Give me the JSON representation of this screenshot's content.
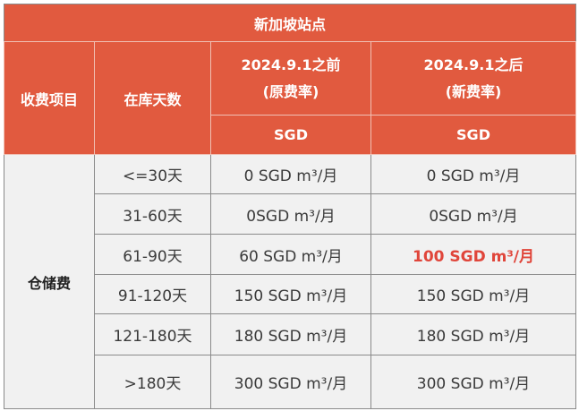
{
  "table": {
    "title": "新加坡站点",
    "headers": {
      "item": "收费项目",
      "days": "在库天数",
      "old_line1": "2024.9.1之前",
      "old_line2": "(原费率)",
      "new_line1": "2024.9.1之后",
      "new_line2": "(新费率)",
      "currency_old": "SGD",
      "currency_new": "SGD"
    },
    "category": "仓储费",
    "rows": [
      {
        "days": "<=30天",
        "old": "0 SGD m³/月",
        "new": "0 SGD m³/月"
      },
      {
        "days": "31-60天",
        "old": "0SGD m³/月",
        "new": "0SGD m³/月"
      },
      {
        "days": "61-90天",
        "old": "60 SGD m³/月",
        "new": "100 SGD m³/月"
      },
      {
        "days": "91-120天",
        "old": "150 SGD m³/月",
        "new": "150 SGD m³/月"
      },
      {
        "days": "121-180天",
        "old": "180 SGD m³/月",
        "new": "180 SGD m³/月"
      },
      {
        "days": ">180天",
        "old": "300 SGD m³/月",
        "new": "300 SGD m³/月"
      }
    ],
    "colors": {
      "header_bg": "#e15a3f",
      "body_bg": "#f1f1f1",
      "highlight_text": "#e0453a"
    }
  }
}
